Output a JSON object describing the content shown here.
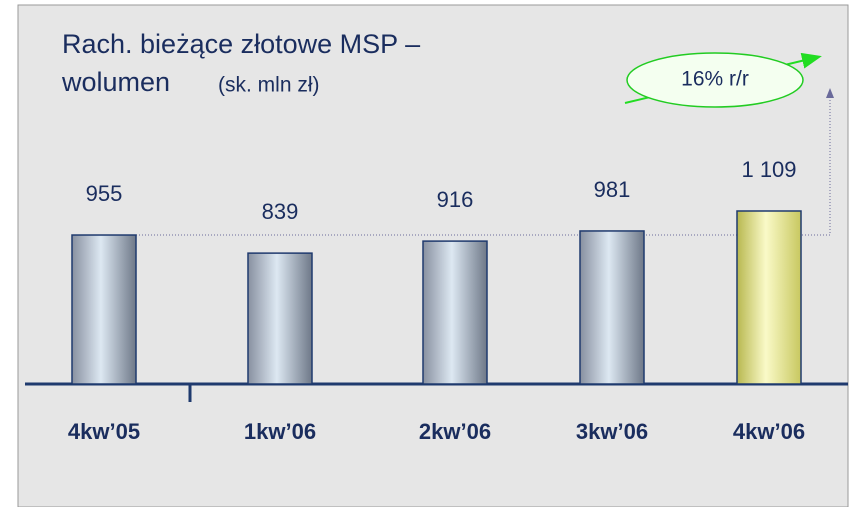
{
  "chart_data": {
    "type": "bar",
    "title": [
      "Rach. bieżące złotowe MSP –",
      "wolumen"
    ],
    "subtitle": "(sk. mln zł)",
    "annotation": "16% r/r",
    "categories": [
      "4kw’05",
      "1kw’06",
      "2kw’06",
      "3kw’06",
      "4kw’06"
    ],
    "values": [
      955,
      839,
      916,
      981,
      1109
    ],
    "value_labels": [
      "955",
      "839",
      "916",
      "981",
      "1 109"
    ],
    "colors": [
      "#8a95a5",
      "#8a95a5",
      "#8a95a5",
      "#8a95a5",
      "#e8e860"
    ]
  }
}
